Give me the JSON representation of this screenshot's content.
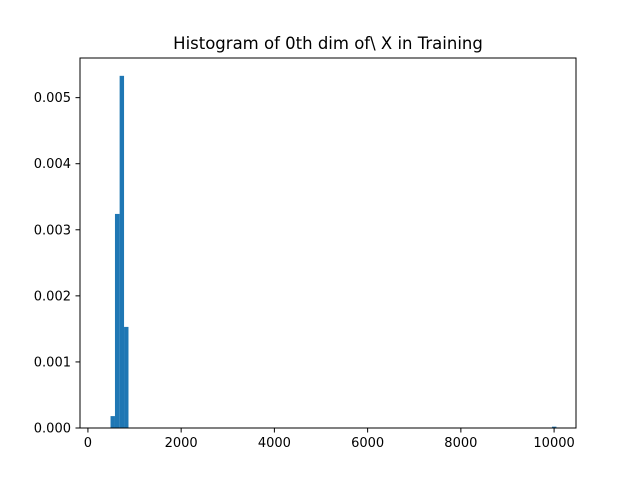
{
  "chart_data": {
    "type": "bar",
    "title": "Histogram of 0th dim of\\ X in Training",
    "xlabel": "",
    "ylabel": "",
    "xlim": [
      -170,
      10470
    ],
    "ylim": [
      0,
      0.0056
    ],
    "x_ticks": [
      0,
      2000,
      4000,
      6000,
      8000,
      10000
    ],
    "x_tick_labels": [
      "0",
      "2000",
      "4000",
      "6000",
      "8000",
      "10000"
    ],
    "y_ticks": [
      0.0,
      0.001,
      0.002,
      0.003,
      0.004,
      0.005
    ],
    "y_tick_labels": [
      "0.000",
      "0.001",
      "0.002",
      "0.003",
      "0.004",
      "0.005"
    ],
    "grid": false,
    "legend": "none",
    "bar_color": "#1f77b4",
    "bins": [
      {
        "x0": 485,
        "x1": 580,
        "value": 0.00018
      },
      {
        "x0": 580,
        "x1": 680,
        "value": 0.00324
      },
      {
        "x0": 680,
        "x1": 775,
        "value": 0.00533
      },
      {
        "x0": 775,
        "x1": 870,
        "value": 0.00153
      },
      {
        "x0": 9955,
        "x1": 10050,
        "value": 2e-05
      }
    ]
  }
}
